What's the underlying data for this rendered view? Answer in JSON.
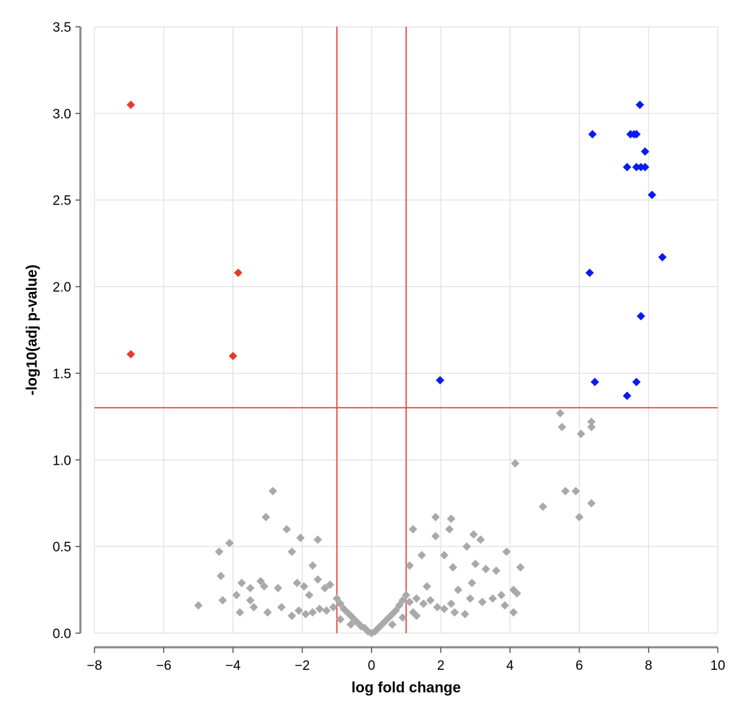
{
  "chart_data": {
    "type": "scatter",
    "title": "",
    "xlabel": "log fold change",
    "ylabel": "-log10(adj p-value)",
    "xlim": [
      -8,
      10
    ],
    "ylim": [
      0,
      3.5
    ],
    "x_ticks": [
      -8,
      -6,
      -4,
      -2,
      0,
      2,
      4,
      6,
      8,
      10
    ],
    "x_tick_labels": [
      "−8",
      "−6",
      "−4",
      "−2",
      "0",
      "2",
      "4",
      "6",
      "8",
      "10"
    ],
    "y_ticks": [
      0,
      0.5,
      1.0,
      1.5,
      2.0,
      2.5,
      3.0,
      3.5
    ],
    "y_tick_labels": [
      "0.0",
      "0.5",
      "1.0",
      "1.5",
      "2.0",
      "2.5",
      "3.0",
      "3.5"
    ],
    "grid": true,
    "marker": "diamond",
    "thresholds": {
      "vertical_x": [
        -1,
        1
      ],
      "horizontal_y": 1.301,
      "color": "#e8392c"
    },
    "series": [
      {
        "color": "#e8392c",
        "points": [
          [
            -6.95,
            3.05
          ],
          [
            -6.95,
            1.61
          ],
          [
            -3.85,
            2.08
          ],
          [
            -4.0,
            1.6
          ]
        ]
      },
      {
        "color": "#0b1af2",
        "points": [
          [
            7.75,
            3.05
          ],
          [
            6.38,
            2.88
          ],
          [
            7.48,
            2.88
          ],
          [
            7.58,
            2.88
          ],
          [
            7.65,
            2.88
          ],
          [
            7.9,
            2.78
          ],
          [
            7.38,
            2.69
          ],
          [
            7.65,
            2.69
          ],
          [
            7.78,
            2.69
          ],
          [
            7.9,
            2.69
          ],
          [
            8.1,
            2.53
          ],
          [
            8.4,
            2.17
          ],
          [
            6.3,
            2.08
          ],
          [
            7.78,
            1.83
          ],
          [
            1.98,
            1.46
          ],
          [
            6.45,
            1.45
          ],
          [
            7.65,
            1.45
          ],
          [
            7.38,
            1.37
          ]
        ]
      },
      {
        "color": "#a9a9a9",
        "points": [
          [
            -5.0,
            0.16
          ],
          [
            -4.4,
            0.47
          ],
          [
            -4.1,
            0.52
          ],
          [
            -4.35,
            0.33
          ],
          [
            -4.3,
            0.19
          ],
          [
            -3.9,
            0.22
          ],
          [
            -3.75,
            0.29
          ],
          [
            -3.5,
            0.26
          ],
          [
            -3.2,
            0.3
          ],
          [
            -3.1,
            0.27
          ],
          [
            -3.5,
            0.19
          ],
          [
            -3.05,
            0.67
          ],
          [
            -2.85,
            0.82
          ],
          [
            -2.45,
            0.6
          ],
          [
            -2.05,
            0.55
          ],
          [
            -1.55,
            0.54
          ],
          [
            -2.3,
            0.47
          ],
          [
            -1.7,
            0.39
          ],
          [
            -2.15,
            0.29
          ],
          [
            -1.95,
            0.27
          ],
          [
            -1.8,
            0.22
          ],
          [
            -1.55,
            0.31
          ],
          [
            -1.35,
            0.26
          ],
          [
            -2.7,
            0.26
          ],
          [
            -3.8,
            0.12
          ],
          [
            -3.4,
            0.15
          ],
          [
            -3.0,
            0.12
          ],
          [
            -2.6,
            0.15
          ],
          [
            -2.3,
            0.1
          ],
          [
            -1.2,
            0.28
          ],
          [
            1.2,
            0.6
          ],
          [
            1.85,
            0.67
          ],
          [
            2.3,
            0.66
          ],
          [
            1.85,
            0.56
          ],
          [
            2.25,
            0.6
          ],
          [
            2.75,
            0.5
          ],
          [
            2.95,
            0.57
          ],
          [
            3.15,
            0.54
          ],
          [
            1.1,
            0.39
          ],
          [
            1.45,
            0.45
          ],
          [
            2.1,
            0.45
          ],
          [
            2.35,
            0.38
          ],
          [
            3.0,
            0.4
          ],
          [
            3.3,
            0.37
          ],
          [
            3.6,
            0.36
          ],
          [
            3.9,
            0.47
          ],
          [
            4.3,
            0.38
          ],
          [
            1.6,
            0.27
          ],
          [
            2.5,
            0.25
          ],
          [
            2.85,
            0.2
          ],
          [
            3.2,
            0.18
          ],
          [
            3.5,
            0.2
          ],
          [
            3.85,
            0.16
          ],
          [
            4.1,
            0.25
          ],
          [
            4.2,
            0.23
          ],
          [
            4.1,
            0.12
          ],
          [
            3.75,
            0.22
          ],
          [
            1.3,
            0.1
          ],
          [
            2.3,
            0.17
          ],
          [
            2.9,
            0.29
          ],
          [
            4.15,
            0.98
          ],
          [
            4.95,
            0.73
          ],
          [
            5.45,
            1.27
          ],
          [
            5.5,
            1.19
          ],
          [
            6.35,
            1.22
          ],
          [
            6.35,
            1.19
          ],
          [
            6.05,
            1.15
          ],
          [
            5.6,
            0.82
          ],
          [
            5.9,
            0.82
          ],
          [
            6.0,
            0.67
          ],
          [
            6.35,
            0.75
          ],
          [
            -1.0,
            0.2
          ],
          [
            -0.9,
            0.17
          ],
          [
            -0.8,
            0.14
          ],
          [
            -0.7,
            0.12
          ],
          [
            -0.6,
            0.1
          ],
          [
            -0.5,
            0.08
          ],
          [
            -0.4,
            0.06
          ],
          [
            -0.3,
            0.04
          ],
          [
            -0.2,
            0.03
          ],
          [
            -0.1,
            0.01
          ],
          [
            0.0,
            0.0
          ],
          [
            0.1,
            0.01
          ],
          [
            0.2,
            0.03
          ],
          [
            0.3,
            0.05
          ],
          [
            0.4,
            0.07
          ],
          [
            0.5,
            0.09
          ],
          [
            0.6,
            0.11
          ],
          [
            0.7,
            0.13
          ],
          [
            0.8,
            0.16
          ],
          [
            0.9,
            0.19
          ],
          [
            1.0,
            0.22
          ],
          [
            -1.1,
            0.15
          ],
          [
            -1.3,
            0.13
          ],
          [
            -1.5,
            0.14
          ],
          [
            -1.7,
            0.12
          ],
          [
            -1.9,
            0.11
          ],
          [
            -2.1,
            0.13
          ],
          [
            1.1,
            0.18
          ],
          [
            1.3,
            0.2
          ],
          [
            1.5,
            0.17
          ],
          [
            1.7,
            0.19
          ],
          [
            1.9,
            0.15
          ],
          [
            2.1,
            0.14
          ],
          [
            2.4,
            0.12
          ],
          [
            2.7,
            0.11
          ],
          [
            -0.9,
            0.08
          ],
          [
            -0.6,
            0.05
          ],
          [
            0.6,
            0.05
          ],
          [
            0.9,
            0.09
          ],
          [
            1.2,
            0.12
          ]
        ]
      }
    ]
  }
}
